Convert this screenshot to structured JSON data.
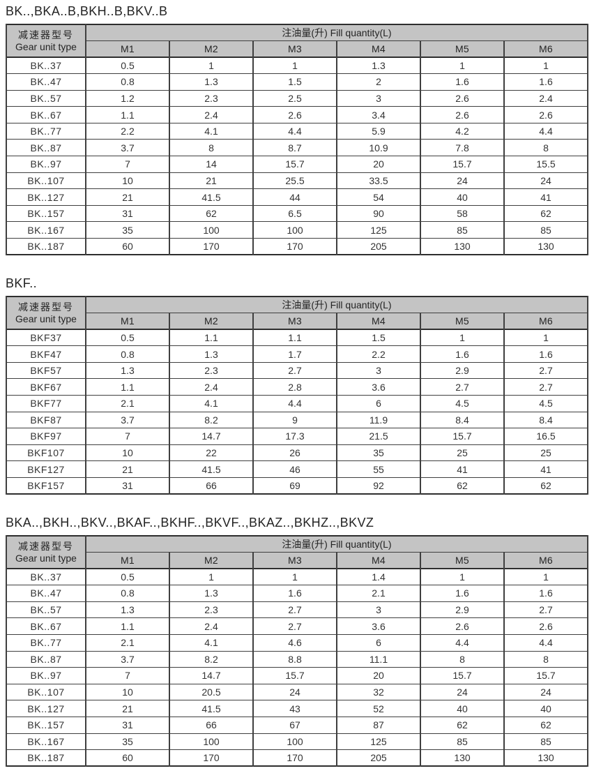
{
  "colors": {
    "header_bg": "#c4c4c4",
    "border": "#3f3f3f",
    "outer_border": "#2e2e2e",
    "text": "#2d2d2d",
    "page_bg": "#ffffff"
  },
  "tables": [
    {
      "title": "BK..,BKA..B,BKH..B,BKV..B",
      "col0_cn": "减速器型号",
      "col0_en": "Gear unit type",
      "span_header": "注油量(升) Fill quantity(L)",
      "columns": [
        "M1",
        "M2",
        "M3",
        "M4",
        "M5",
        "M6"
      ],
      "rows": [
        {
          "model": "BK..37",
          "values": [
            "0.5",
            "1",
            "1",
            "1.3",
            "1",
            "1"
          ]
        },
        {
          "model": "BK..47",
          "values": [
            "0.8",
            "1.3",
            "1.5",
            "2",
            "1.6",
            "1.6"
          ]
        },
        {
          "model": "BK..57",
          "values": [
            "1.2",
            "2.3",
            "2.5",
            "3",
            "2.6",
            "2.4"
          ]
        },
        {
          "model": "BK..67",
          "values": [
            "1.1",
            "2.4",
            "2.6",
            "3.4",
            "2.6",
            "2.6"
          ]
        },
        {
          "model": "BK..77",
          "values": [
            "2.2",
            "4.1",
            "4.4",
            "5.9",
            "4.2",
            "4.4"
          ]
        },
        {
          "model": "BK..87",
          "values": [
            "3.7",
            "8",
            "8.7",
            "10.9",
            "7.8",
            "8"
          ]
        },
        {
          "model": "BK..97",
          "values": [
            "7",
            "14",
            "15.7",
            "20",
            "15.7",
            "15.5"
          ]
        },
        {
          "model": "BK..107",
          "values": [
            "10",
            "21",
            "25.5",
            "33.5",
            "24",
            "24"
          ]
        },
        {
          "model": "BK..127",
          "values": [
            "21",
            "41.5",
            "44",
            "54",
            "40",
            "41"
          ]
        },
        {
          "model": "BK..157",
          "values": [
            "31",
            "62",
            "6.5",
            "90",
            "58",
            "62"
          ]
        },
        {
          "model": "BK..167",
          "values": [
            "35",
            "100",
            "100",
            "125",
            "85",
            "85"
          ]
        },
        {
          "model": "BK..187",
          "values": [
            "60",
            "170",
            "170",
            "205",
            "130",
            "130"
          ]
        }
      ]
    },
    {
      "title": "BKF..",
      "col0_cn": "减速器型号",
      "col0_en": "Gear unit type",
      "span_header": "注油量(升) Fill quantity(L)",
      "columns": [
        "M1",
        "M2",
        "M3",
        "M4",
        "M5",
        "M6"
      ],
      "rows": [
        {
          "model": "BKF37",
          "values": [
            "0.5",
            "1.1",
            "1.1",
            "1.5",
            "1",
            "1"
          ]
        },
        {
          "model": "BKF47",
          "values": [
            "0.8",
            "1.3",
            "1.7",
            "2.2",
            "1.6",
            "1.6"
          ]
        },
        {
          "model": "BKF57",
          "values": [
            "1.3",
            "2.3",
            "2.7",
            "3",
            "2.9",
            "2.7"
          ]
        },
        {
          "model": "BKF67",
          "values": [
            "1.1",
            "2.4",
            "2.8",
            "3.6",
            "2.7",
            "2.7"
          ]
        },
        {
          "model": "BKF77",
          "values": [
            "2.1",
            "4.1",
            "4.4",
            "6",
            "4.5",
            "4.5"
          ]
        },
        {
          "model": "BKF87",
          "values": [
            "3.7",
            "8.2",
            "9",
            "11.9",
            "8.4",
            "8.4"
          ]
        },
        {
          "model": "BKF97",
          "values": [
            "7",
            "14.7",
            "17.3",
            "21.5",
            "15.7",
            "16.5"
          ]
        },
        {
          "model": "BKF107",
          "values": [
            "10",
            "22",
            "26",
            "35",
            "25",
            "25"
          ]
        },
        {
          "model": "BKF127",
          "values": [
            "21",
            "41.5",
            "46",
            "55",
            "41",
            "41"
          ]
        },
        {
          "model": "BKF157",
          "values": [
            "31",
            "66",
            "69",
            "92",
            "62",
            "62"
          ]
        }
      ]
    },
    {
      "title": "BKA..,BKH..,BKV..,BKAF..,BKHF..,BKVF..,BKAZ..,BKHZ..,BKVZ",
      "col0_cn": "减速器型号",
      "col0_en": "Gear unit type",
      "span_header": "注油量(升) Fill quantity(L)",
      "columns": [
        "M1",
        "M2",
        "M3",
        "M4",
        "M5",
        "M6"
      ],
      "rows": [
        {
          "model": "BK..37",
          "values": [
            "0.5",
            "1",
            "1",
            "1.4",
            "1",
            "1"
          ]
        },
        {
          "model": "BK..47",
          "values": [
            "0.8",
            "1.3",
            "1.6",
            "2.1",
            "1.6",
            "1.6"
          ]
        },
        {
          "model": "BK..57",
          "values": [
            "1.3",
            "2.3",
            "2.7",
            "3",
            "2.9",
            "2.7"
          ]
        },
        {
          "model": "BK..67",
          "values": [
            "1.1",
            "2.4",
            "2.7",
            "3.6",
            "2.6",
            "2.6"
          ]
        },
        {
          "model": "BK..77",
          "values": [
            "2.1",
            "4.1",
            "4.6",
            "6",
            "4.4",
            "4.4"
          ]
        },
        {
          "model": "BK..87",
          "values": [
            "3.7",
            "8.2",
            "8.8",
            "11.1",
            "8",
            "8"
          ]
        },
        {
          "model": "BK..97",
          "values": [
            "7",
            "14.7",
            "15.7",
            "20",
            "15.7",
            "15.7"
          ]
        },
        {
          "model": "BK..107",
          "values": [
            "10",
            "20.5",
            "24",
            "32",
            "24",
            "24"
          ]
        },
        {
          "model": "BK..127",
          "values": [
            "21",
            "41.5",
            "43",
            "52",
            "40",
            "40"
          ]
        },
        {
          "model": "BK..157",
          "values": [
            "31",
            "66",
            "67",
            "87",
            "62",
            "62"
          ]
        },
        {
          "model": "BK..167",
          "values": [
            "35",
            "100",
            "100",
            "125",
            "85",
            "85"
          ]
        },
        {
          "model": "BK..187",
          "values": [
            "60",
            "170",
            "170",
            "205",
            "130",
            "130"
          ]
        }
      ]
    }
  ]
}
